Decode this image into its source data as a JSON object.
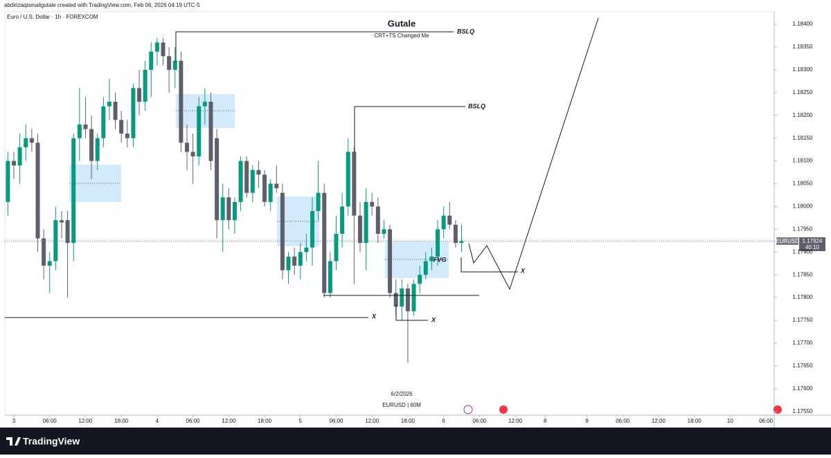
{
  "header": {
    "credit": "abdirizaqismailgutale created with TradingView.com, Feb 06, 2026 04:19 UTC-5"
  },
  "footer": {
    "brand": "TradingView"
  },
  "chart_data": {
    "type": "candlestick",
    "symbol": "Euro / U.S. Dollar · 1h · FOREXCOM",
    "title": "Gutale",
    "subtitle": "CRT+TS Changed Me",
    "annotations": [
      "BSLQ",
      "BSLQ",
      "X",
      "X",
      "X",
      "FVG"
    ],
    "date_label": "6/2/2026",
    "interval_label": "EURUSD | 60M",
    "symbol_tag": "EURUSD",
    "last_price": 1.17924,
    "countdown": "40:10",
    "up_color": "#089981",
    "down_color": "#5d606b",
    "xlim": [
      -1.51,
      127.38
    ],
    "ylim": [
      1.17542,
      1.18426
    ],
    "xticks": [
      {
        "value": 0,
        "label": "3"
      },
      {
        "value": 6,
        "label": "06:00"
      },
      {
        "value": 12,
        "label": "12:00"
      },
      {
        "value": 18,
        "label": "18:00"
      },
      {
        "value": 24,
        "label": "4"
      },
      {
        "value": 30,
        "label": "06:00"
      },
      {
        "value": 36,
        "label": "12:00"
      },
      {
        "value": 42,
        "label": "18:00"
      },
      {
        "value": 48,
        "label": "5"
      },
      {
        "value": 54,
        "label": "06:00"
      },
      {
        "value": 60,
        "label": "12:00"
      },
      {
        "value": 66,
        "label": "18:00"
      },
      {
        "value": 72,
        "label": "6"
      },
      {
        "value": 78,
        "label": "06:00"
      },
      {
        "value": 84,
        "label": "12:00"
      },
      {
        "value": 89,
        "label": "8"
      },
      {
        "value": 96,
        "label": "9"
      },
      {
        "value": 102,
        "label": "06:00"
      },
      {
        "value": 108,
        "label": "12:00"
      },
      {
        "value": 114,
        "label": "18:00"
      },
      {
        "value": 120,
        "label": "10"
      },
      {
        "value": 126,
        "label": "06:00"
      }
    ],
    "yticks": [
      {
        "value": 1.1755,
        "label": "1.17550"
      },
      {
        "value": 1.176,
        "label": "1.17600"
      },
      {
        "value": 1.1765,
        "label": "1.17650"
      },
      {
        "value": 1.177,
        "label": "1.17700"
      },
      {
        "value": 1.1775,
        "label": "1.17750"
      },
      {
        "value": 1.178,
        "label": "1.17800"
      },
      {
        "value": 1.1785,
        "label": "1.17850"
      },
      {
        "value": 1.179,
        "label": "1.17900"
      },
      {
        "value": 1.1795,
        "label": "1.17950"
      },
      {
        "value": 1.18,
        "label": "1.18000"
      },
      {
        "value": 1.1805,
        "label": "1.18050"
      },
      {
        "value": 1.181,
        "label": "1.18100"
      },
      {
        "value": 1.1815,
        "label": "1.18150"
      },
      {
        "value": 1.182,
        "label": "1.18200"
      },
      {
        "value": 1.1825,
        "label": "1.18250"
      },
      {
        "value": 1.183,
        "label": "1.18300"
      },
      {
        "value": 1.1835,
        "label": "1.18350"
      },
      {
        "value": 1.184,
        "label": "1.18400"
      }
    ],
    "x": [
      -1,
      0,
      1,
      2,
      3,
      4,
      5,
      6,
      7,
      8,
      9,
      10,
      11,
      12,
      13,
      14,
      15,
      16,
      17,
      18,
      19,
      20,
      21,
      22,
      23,
      24,
      25,
      26,
      27,
      28,
      29,
      30,
      31,
      32,
      33,
      34,
      35,
      36,
      37,
      38,
      39,
      40,
      41,
      42,
      43,
      44,
      45,
      46,
      47,
      48,
      49,
      50,
      51,
      52,
      53,
      54,
      55,
      56,
      57,
      58,
      59,
      60,
      61,
      62,
      63,
      64,
      65,
      66,
      67,
      68,
      69,
      70,
      71,
      72,
      73,
      74,
      75
    ],
    "open": [
      1.1801,
      1.181,
      1.1809,
      1.1813,
      1.1815,
      1.1814,
      1.1793,
      1.1787,
      1.1788,
      1.1797,
      1.1797,
      1.1792,
      1.1815,
      1.1818,
      1.1817,
      1.181,
      1.1815,
      1.1822,
      1.1823,
      1.1819,
      1.1816,
      1.1815,
      1.1826,
      1.1823,
      1.183,
      1.1834,
      1.1836,
      1.1833,
      1.183,
      1.1832,
      1.1814,
      1.1812,
      1.1811,
      1.1822,
      1.1823,
      1.1815,
      1.1797,
      1.1802,
      1.1797,
      1.1801,
      1.181,
      1.1803,
      1.1808,
      1.1807,
      1.1801,
      1.1805,
      1.1803,
      1.1786,
      1.1789,
      1.1787,
      1.179,
      1.1791,
      1.1799,
      1.1803,
      1.1781,
      1.1788,
      1.1794,
      1.18,
      1.1812,
      1.1798,
      1.1792,
      1.1801,
      1.18,
      1.1794,
      1.1795,
      1.1781,
      1.1778,
      1.1782,
      1.1777,
      1.1783,
      1.1785,
      1.1788,
      1.1789,
      1.1795,
      1.1798,
      1.1796,
      1.1792
    ],
    "high": [
      1.1812,
      1.1812,
      1.1816,
      1.1818,
      1.1817,
      1.1816,
      1.1795,
      1.179,
      1.18,
      1.1799,
      1.1799,
      1.1816,
      1.1826,
      1.1824,
      1.182,
      1.1816,
      1.1824,
      1.1828,
      1.1825,
      1.1821,
      1.1819,
      1.1827,
      1.183,
      1.1832,
      1.1836,
      1.1837,
      1.1837,
      1.1835,
      1.1835,
      1.1834,
      1.1818,
      1.1816,
      1.1824,
      1.1826,
      1.1825,
      1.1817,
      1.1805,
      1.1804,
      1.1802,
      1.1811,
      1.1811,
      1.1809,
      1.181,
      1.1808,
      1.1806,
      1.1809,
      1.1805,
      1.179,
      1.1791,
      1.1792,
      1.1794,
      1.1802,
      1.181,
      1.1805,
      1.179,
      1.1798,
      1.1803,
      1.1815,
      1.1813,
      1.1801,
      1.1804,
      1.1803,
      1.1802,
      1.1797,
      1.1796,
      1.1784,
      1.1784,
      1.1783,
      1.1784,
      1.1787,
      1.179,
      1.1791,
      1.1797,
      1.18,
      1.1801,
      1.1797,
      1.1796
    ],
    "low": [
      1.1798,
      1.1806,
      1.1805,
      1.181,
      1.1812,
      1.179,
      1.1784,
      1.1781,
      1.1786,
      1.1793,
      1.178,
      1.1788,
      1.181,
      1.1815,
      1.1806,
      1.1808,
      1.1813,
      1.1819,
      1.1817,
      1.1814,
      1.1813,
      1.1813,
      1.182,
      1.1821,
      1.1824,
      1.1831,
      1.1831,
      1.1825,
      1.1826,
      1.1812,
      1.1808,
      1.1805,
      1.1809,
      1.1818,
      1.1808,
      1.1793,
      1.179,
      1.1795,
      1.1794,
      1.1799,
      1.1802,
      1.1801,
      1.1804,
      1.18,
      1.1799,
      1.1803,
      1.1784,
      1.1783,
      1.1785,
      1.1784,
      1.1788,
      1.1787,
      1.1797,
      1.178,
      1.178,
      1.1786,
      1.1791,
      1.1798,
      1.1783,
      1.179,
      1.1786,
      1.1798,
      1.1792,
      1.1793,
      1.178,
      1.1776,
      1.1775,
      1.17656,
      1.1776,
      1.1781,
      1.1784,
      1.1786,
      1.1787,
      1.1793,
      1.1795,
      1.1791,
      1.179
    ],
    "close": [
      1.181,
      1.1809,
      1.1813,
      1.1815,
      1.1814,
      1.1793,
      1.1787,
      1.1788,
      1.1797,
      1.17965,
      1.1792,
      1.1815,
      1.1818,
      1.1817,
      1.181,
      1.1815,
      1.1822,
      1.1823,
      1.1819,
      1.1816,
      1.1815,
      1.1826,
      1.1823,
      1.183,
      1.1834,
      1.1836,
      1.1833,
      1.183,
      1.1832,
      1.1814,
      1.1812,
      1.1811,
      1.1822,
      1.1823,
      1.181,
      1.1797,
      1.1802,
      1.1797,
      1.1801,
      1.181,
      1.1803,
      1.1808,
      1.1807,
      1.1801,
      1.1805,
      1.1804,
      1.1786,
      1.1789,
      1.1787,
      1.179,
      1.1791,
      1.1799,
      1.1803,
      1.1781,
      1.1788,
      1.1794,
      1.18,
      1.1812,
      1.1798,
      1.1792,
      1.1801,
      1.18,
      1.1794,
      1.1795,
      1.1781,
      1.1778,
      1.1782,
      1.1777,
      1.1783,
      1.1785,
      1.1788,
      1.1789,
      1.1795,
      1.1798,
      1.1796,
      1.1792,
      1.17924
    ]
  }
}
